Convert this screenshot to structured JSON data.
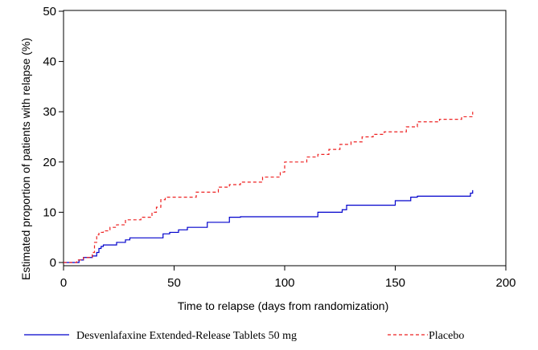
{
  "chart_data": {
    "type": "line",
    "step": true,
    "xlabel": "Time to relapse (days from randomization)",
    "ylabel": "Estimated proportion of patients with relapse (%)",
    "xlim": [
      0,
      200
    ],
    "ylim": [
      0,
      50
    ],
    "xticks": [
      0,
      50,
      100,
      150,
      200
    ],
    "yticks": [
      0,
      10,
      20,
      30,
      40,
      50
    ],
    "grid": false,
    "legend_position": "bottom",
    "series": [
      {
        "name": "Desvenlafaxine Extended-Release Tablets 50 mg",
        "color": "#0000cc",
        "dash": "solid",
        "x": [
          0,
          7,
          9,
          13,
          15,
          16,
          17,
          18,
          24,
          28,
          30,
          45,
          48,
          52,
          56,
          65,
          75,
          80,
          115,
          126,
          128,
          150,
          157,
          160,
          184,
          185
        ],
        "y": [
          0,
          0.5,
          1,
          1.3,
          2,
          2.8,
          3.2,
          3.5,
          4,
          4.5,
          4.9,
          5.7,
          6,
          6.5,
          7,
          8,
          9,
          9.1,
          10,
          10.5,
          11.4,
          12.3,
          13,
          13.2,
          13.8,
          14.4
        ]
      },
      {
        "name": "Placebo",
        "color": "#ee2222",
        "dash": "dashed",
        "x": [
          0,
          6,
          9,
          13,
          14,
          15,
          16,
          18,
          21,
          24,
          28,
          35,
          40,
          42,
          44,
          46,
          60,
          70,
          75,
          80,
          90,
          98,
          100,
          110,
          115,
          120,
          125,
          130,
          135,
          140,
          145,
          155,
          160,
          170,
          180,
          185
        ],
        "y": [
          0,
          0.5,
          1,
          2,
          4,
          5.5,
          6,
          6.3,
          7,
          7.5,
          8.5,
          9,
          10,
          11,
          12.5,
          13,
          14,
          15,
          15.5,
          16,
          17,
          18,
          20,
          21,
          21.5,
          22.5,
          23.5,
          24,
          25,
          25.5,
          26,
          27,
          28,
          28.5,
          29,
          30
        ]
      }
    ]
  }
}
